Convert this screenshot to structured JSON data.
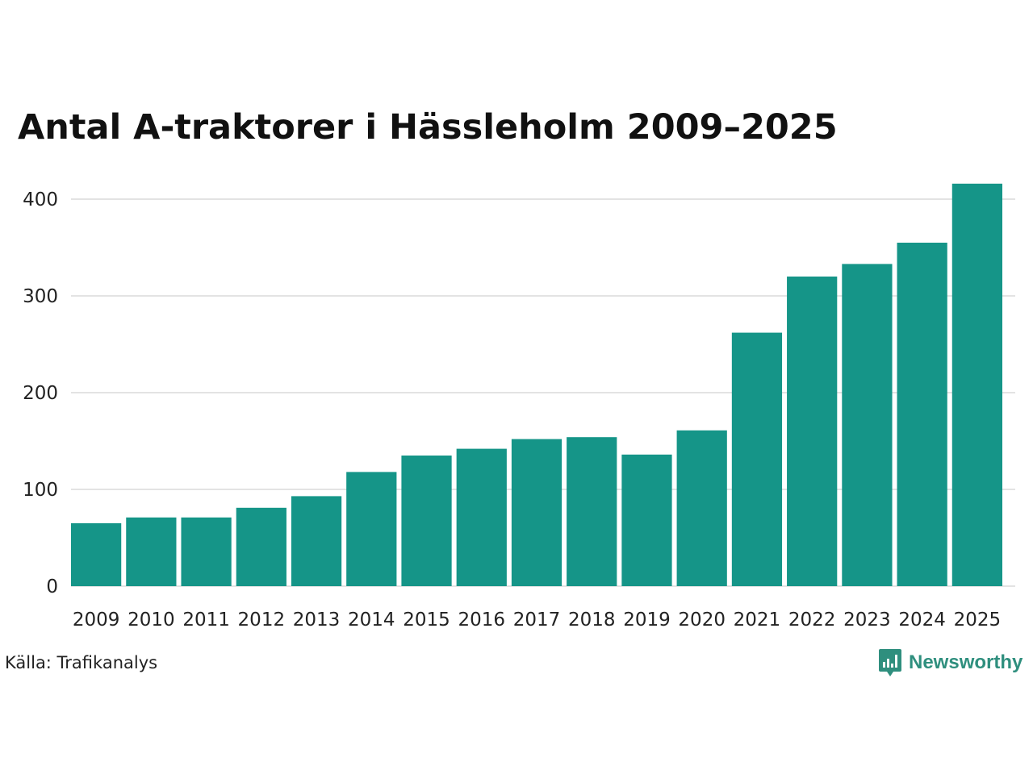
{
  "chart_data": {
    "type": "bar",
    "title": "Antal A-traktorer i Hässleholm 2009–2025",
    "categories": [
      "2009",
      "2010",
      "2011",
      "2012",
      "2013",
      "2014",
      "2015",
      "2016",
      "2017",
      "2018",
      "2019",
      "2020",
      "2021",
      "2022",
      "2023",
      "2024",
      "2025"
    ],
    "values": [
      65,
      71,
      71,
      81,
      93,
      118,
      135,
      142,
      152,
      154,
      136,
      161,
      262,
      320,
      333,
      355,
      416
    ],
    "yticks": [
      0,
      100,
      200,
      300,
      400
    ],
    "ylim": [
      0,
      430
    ],
    "xlabel": "",
    "ylabel": "",
    "grid": true,
    "bar_color": "#159588",
    "grid_color": "#e3e3e3"
  },
  "source": "Källa: Trafikanalys",
  "brand": {
    "name": "Newsworthy",
    "color": "#2f8f7e",
    "icon": "newsworthy-logo-icon"
  }
}
